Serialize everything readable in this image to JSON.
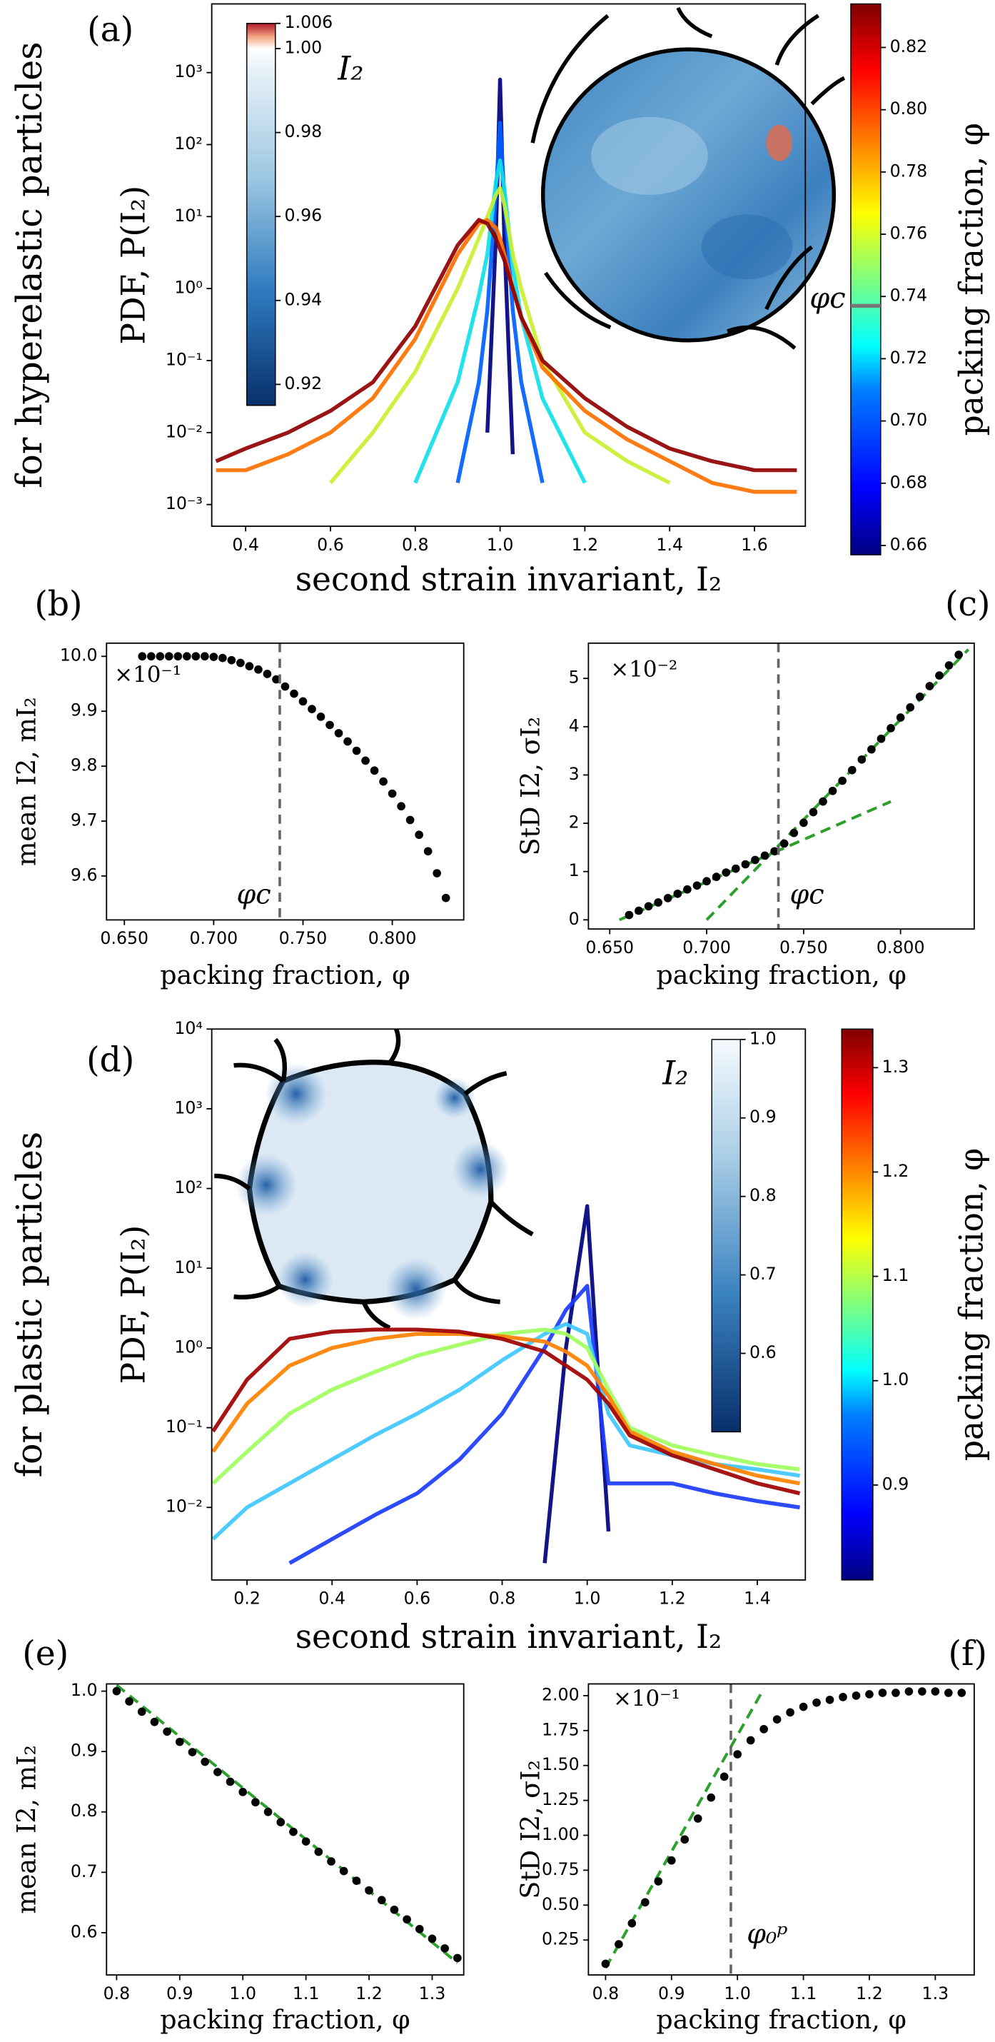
{
  "chart_data": [
    {
      "type": "line",
      "panel_label": "(a)",
      "row_label": "for hyperelastic particles",
      "y_label": "PDF, P(I₂)",
      "x_label": "second strain invariant, I₂",
      "yscale": "log",
      "xlim": [
        0.32,
        1.72
      ],
      "xticks": [
        0.4,
        0.6,
        0.8,
        {
          "value": 1,
          "label": "1.0"
        },
        1.2,
        1.4,
        1.6
      ],
      "ylim": [
        0.0005,
        9000
      ],
      "yticks": [
        {
          "value": 0.001,
          "label": "10⁻³"
        },
        {
          "value": 0.01,
          "label": "10⁻²"
        },
        {
          "value": 0.1,
          "label": "10⁻¹"
        },
        {
          "value": 1,
          "label": "10⁰"
        },
        {
          "value": 10,
          "label": "10¹"
        },
        {
          "value": 100,
          "label": "10²"
        },
        {
          "value": 1000,
          "label": "10³"
        }
      ],
      "x": [
        0.33,
        0.4,
        0.5,
        0.6,
        0.7,
        0.8,
        0.9,
        0.95,
        0.97,
        0.99,
        1.0,
        1.01,
        1.03,
        1.05,
        1.1,
        1.2,
        1.3,
        1.4,
        1.5,
        1.6,
        1.7
      ],
      "series": [
        {
          "color": "#00007f",
          "values": [
            null,
            null,
            null,
            null,
            null,
            null,
            null,
            null,
            0.01,
            5,
            800,
            5,
            0.005,
            null,
            null,
            null,
            null,
            null,
            null,
            null,
            null
          ]
        },
        {
          "color": "#0060ff",
          "values": [
            null,
            null,
            null,
            null,
            null,
            null,
            0.002,
            0.05,
            0.5,
            20,
            200,
            20,
            0.5,
            0.05,
            0.002,
            null,
            null,
            null,
            null,
            null,
            null
          ]
        },
        {
          "color": "#10e0e8",
          "values": [
            null,
            null,
            null,
            null,
            null,
            0.002,
            0.05,
            0.8,
            3,
            30,
            60,
            25,
            2,
            0.4,
            0.03,
            0.002,
            null,
            null,
            null,
            null,
            null
          ]
        },
        {
          "color": "#c8f030",
          "values": [
            null,
            null,
            null,
            0.002,
            0.01,
            0.07,
            1,
            5,
            10,
            20,
            25,
            15,
            3,
            1,
            0.1,
            0.01,
            0.004,
            0.002,
            null,
            null,
            null
          ]
        },
        {
          "color": "#ff7000",
          "values": [
            0.003,
            0.003,
            0.005,
            0.01,
            0.03,
            0.2,
            3,
            8,
            9,
            7,
            5,
            3,
            1,
            0.4,
            0.08,
            0.02,
            0.008,
            0.004,
            0.002,
            0.0015,
            0.0015
          ]
        },
        {
          "color": "#900000",
          "values": [
            0.004,
            0.006,
            0.01,
            0.02,
            0.05,
            0.3,
            4,
            9,
            8,
            5,
            3.5,
            2.5,
            1,
            0.4,
            0.1,
            0.03,
            0.012,
            0.006,
            0.004,
            0.003,
            0.003
          ]
        }
      ],
      "colorbar": {
        "label": "packing fraction, φ",
        "lim": [
          0.657,
          0.834
        ],
        "ticks": [
          0.66,
          0.68,
          {
            "value": 0.7,
            "label": "0.70"
          },
          0.72,
          0.74,
          0.76,
          0.78,
          {
            "value": 0.8,
            "label": "0.80"
          },
          0.82
        ],
        "marker": {
          "value": 0.737,
          "label": "φc"
        }
      },
      "inset_colorbar": {
        "label": "I₂",
        "lim": [
          0.915,
          1.006
        ],
        "ticks": [
          0.92,
          0.94,
          0.96,
          0.98,
          {
            "value": 1,
            "label": "1.00"
          },
          1.006
        ]
      }
    },
    {
      "type": "scatter",
      "panel_label": "(b)",
      "y_label": "mean I2, mI₂",
      "x_label": "packing fraction, φ",
      "multiplier": "×10⁻¹",
      "xlim": [
        0.64,
        0.84
      ],
      "xticks": [
        {
          "value": 0.65,
          "label": "0.650"
        },
        {
          "value": 0.7,
          "label": "0.700"
        },
        {
          "value": 0.75,
          "label": "0.750"
        },
        {
          "value": 0.8,
          "label": "0.800"
        }
      ],
      "ylim": [
        9.52,
        10.024
      ],
      "yticks": [
        9.6,
        9.7,
        9.8,
        9.9,
        {
          "value": 10,
          "label": "10.0"
        }
      ],
      "vline": {
        "value": 0.737,
        "label": "φc"
      },
      "color": "#000000",
      "x": [
        0.66,
        0.665,
        0.67,
        0.675,
        0.68,
        0.685,
        0.69,
        0.695,
        0.7,
        0.705,
        0.71,
        0.715,
        0.72,
        0.725,
        0.73,
        0.735,
        0.74,
        0.745,
        0.75,
        0.755,
        0.76,
        0.765,
        0.77,
        0.775,
        0.78,
        0.785,
        0.79,
        0.795,
        0.8,
        0.805,
        0.81,
        0.815,
        0.82,
        0.825,
        0.83
      ],
      "values": [
        10,
        10,
        10,
        10,
        10,
        10,
        10,
        10,
        9.999,
        9.997,
        9.993,
        9.988,
        9.982,
        9.976,
        9.968,
        9.958,
        9.945,
        9.932,
        9.918,
        9.904,
        9.89,
        9.875,
        9.86,
        9.845,
        9.828,
        9.81,
        9.792,
        9.772,
        9.75,
        9.727,
        9.702,
        9.675,
        9.645,
        9.605,
        9.56
      ]
    },
    {
      "type": "scatter",
      "panel_label": "(c)",
      "y_label": "StD I2, σI₂",
      "x_label": "packing fraction, φ",
      "multiplier": "×10⁻²",
      "xlim": [
        0.639,
        0.838
      ],
      "xticks": [
        {
          "value": 0.65,
          "label": "0.650"
        },
        {
          "value": 0.7,
          "label": "0.700"
        },
        {
          "value": 0.75,
          "label": "0.750"
        },
        {
          "value": 0.8,
          "label": "0.800"
        }
      ],
      "ylim": [
        -0.19,
        5.73
      ],
      "yticks": [
        0,
        1,
        2,
        3,
        4,
        5
      ],
      "vline": {
        "value": 0.737,
        "label": "φc"
      },
      "color": "#000000",
      "fits": [
        {
          "color": "#2ca02c",
          "x": [
            0.655,
            0.795
          ],
          "y": [
            0,
            2.45
          ]
        },
        {
          "color": "#2ca02c",
          "x": [
            0.7,
            0.835
          ],
          "y": [
            0,
            5.6
          ]
        }
      ],
      "x": [
        0.66,
        0.665,
        0.67,
        0.675,
        0.68,
        0.685,
        0.69,
        0.695,
        0.7,
        0.705,
        0.71,
        0.715,
        0.72,
        0.725,
        0.73,
        0.735,
        0.74,
        0.745,
        0.75,
        0.755,
        0.76,
        0.765,
        0.77,
        0.775,
        0.78,
        0.785,
        0.79,
        0.795,
        0.8,
        0.805,
        0.81,
        0.815,
        0.82,
        0.825,
        0.83
      ],
      "values": [
        0.1,
        0.19,
        0.28,
        0.36,
        0.45,
        0.54,
        0.63,
        0.71,
        0.8,
        0.89,
        0.98,
        1.06,
        1.15,
        1.24,
        1.33,
        1.42,
        1.58,
        1.8,
        2.01,
        2.23,
        2.45,
        2.67,
        2.88,
        3.1,
        3.32,
        3.53,
        3.75,
        3.97,
        4.19,
        4.4,
        4.62,
        4.84,
        5.06,
        5.27,
        5.49
      ]
    },
    {
      "type": "line",
      "panel_label": "(d)",
      "row_label": "for plastic particles",
      "y_label": "PDF, P(I₂)",
      "x_label": "second strain invariant, I₂",
      "yscale": "log",
      "xlim": [
        0.117,
        1.513
      ],
      "xticks": [
        0.2,
        0.4,
        0.6,
        0.8,
        {
          "value": 1,
          "label": "1.0"
        },
        1.2,
        1.4
      ],
      "ylim": [
        0.00123,
        10000
      ],
      "yticks": [
        {
          "value": 0.01,
          "label": "10⁻²"
        },
        {
          "value": 0.1,
          "label": "10⁻¹"
        },
        {
          "value": 1,
          "label": "10⁰"
        },
        {
          "value": 10,
          "label": "10¹"
        },
        {
          "value": 100,
          "label": "10²"
        },
        {
          "value": 1000,
          "label": "10³"
        },
        {
          "value": 10000,
          "label": "10⁴"
        }
      ],
      "x": [
        0.12,
        0.2,
        0.3,
        0.4,
        0.5,
        0.6,
        0.7,
        0.8,
        0.9,
        0.95,
        1.0,
        1.05,
        1.1,
        1.2,
        1.3,
        1.4,
        1.5
      ],
      "series": [
        {
          "color": "#00007f",
          "values": [
            null,
            null,
            null,
            null,
            null,
            null,
            null,
            null,
            0.002,
            1,
            60,
            0.005,
            null,
            null,
            null,
            null,
            null
          ]
        },
        {
          "color": "#1a3cff",
          "values": [
            null,
            null,
            0.002,
            0.004,
            0.008,
            0.015,
            0.04,
            0.15,
            1,
            3,
            6,
            0.02,
            0.02,
            0.02,
            0.015,
            0.012,
            0.01
          ]
        },
        {
          "color": "#40c8ff",
          "values": [
            0.004,
            0.01,
            0.02,
            0.04,
            0.08,
            0.15,
            0.3,
            0.7,
            1.5,
            2,
            1.5,
            0.15,
            0.06,
            0.045,
            0.035,
            0.03,
            0.025
          ]
        },
        {
          "color": "#a0ff60",
          "values": [
            0.02,
            0.05,
            0.15,
            0.3,
            0.5,
            0.8,
            1.1,
            1.5,
            1.7,
            1.5,
            1,
            0.3,
            0.1,
            0.06,
            0.045,
            0.035,
            0.03
          ]
        },
        {
          "color": "#ff8000",
          "values": [
            0.05,
            0.2,
            0.6,
            1,
            1.3,
            1.5,
            1.5,
            1.4,
            1.2,
            0.9,
            0.6,
            0.25,
            0.09,
            0.05,
            0.035,
            0.025,
            0.02
          ]
        },
        {
          "color": "#a00000",
          "values": [
            0.09,
            0.4,
            1.3,
            1.6,
            1.7,
            1.7,
            1.6,
            1.3,
            0.9,
            0.6,
            0.4,
            0.2,
            0.08,
            0.045,
            0.03,
            0.02,
            0.015
          ]
        }
      ],
      "colorbar": {
        "label": "packing fraction, φ",
        "lim": [
          0.809,
          1.337
        ],
        "ticks": [
          0.9,
          {
            "value": 1,
            "label": "1.0"
          },
          1.1,
          1.2,
          1.3
        ]
      },
      "inset_colorbar": {
        "label": "I₂",
        "lim": [
          0.5,
          1.0
        ],
        "ticks": [
          0.6,
          0.7,
          0.8,
          0.9,
          {
            "value": 1,
            "label": "1.0"
          }
        ]
      }
    },
    {
      "type": "scatter",
      "panel_label": "(e)",
      "y_label": "mean I2, mI₂",
      "x_label": "packing fraction, φ",
      "xlim": [
        0.784,
        1.35
      ],
      "xticks": [
        0.8,
        0.9,
        {
          "value": 1,
          "label": "1.0"
        },
        1.1,
        1.2,
        1.3
      ],
      "ylim": [
        0.53,
        1.012
      ],
      "yticks": [
        0.6,
        0.7,
        0.8,
        0.9,
        {
          "value": 1,
          "label": "1.0"
        }
      ],
      "color": "#000000",
      "fits": [
        {
          "color": "#2ca02c",
          "x": [
            0.8,
            1.34
          ],
          "y": [
            1.01,
            0.55
          ]
        }
      ],
      "x": [
        0.8,
        0.82,
        0.84,
        0.86,
        0.88,
        0.9,
        0.92,
        0.94,
        0.96,
        0.98,
        1.0,
        1.02,
        1.04,
        1.06,
        1.08,
        1.1,
        1.12,
        1.14,
        1.16,
        1.18,
        1.2,
        1.22,
        1.24,
        1.26,
        1.28,
        1.3,
        1.32,
        1.34
      ],
      "values": [
        1.0,
        0.983,
        0.966,
        0.949,
        0.933,
        0.916,
        0.899,
        0.883,
        0.866,
        0.85,
        0.833,
        0.816,
        0.8,
        0.783,
        0.767,
        0.751,
        0.734,
        0.718,
        0.702,
        0.686,
        0.67,
        0.654,
        0.638,
        0.622,
        0.606,
        0.59,
        0.574,
        0.558
      ]
    },
    {
      "type": "scatter",
      "panel_label": "(f)",
      "y_label": "StD I2, σI₂",
      "x_label": "packing fraction, φ",
      "multiplier": "×10⁻¹",
      "xlim": [
        0.774,
        1.359
      ],
      "xticks": [
        0.8,
        0.9,
        {
          "value": 1,
          "label": "1.0"
        },
        1.1,
        1.2,
        1.3
      ],
      "ylim": [
        0,
        2.084
      ],
      "yticks": [
        0.25,
        {
          "value": 0.5,
          "label": "0.50"
        },
        0.75,
        {
          "value": 1,
          "label": "1.00"
        },
        1.25,
        {
          "value": 1.5,
          "label": "1.50"
        },
        1.75,
        {
          "value": 2,
          "label": "2.00"
        }
      ],
      "vline": {
        "value": 0.99,
        "label": "φ₀ᵖ"
      },
      "color": "#000000",
      "fits": [
        {
          "color": "#2ca02c",
          "x": [
            0.8,
            1.04
          ],
          "y": [
            0.05,
            2.05
          ]
        }
      ],
      "x": [
        0.8,
        0.82,
        0.84,
        0.86,
        0.88,
        0.9,
        0.92,
        0.94,
        0.96,
        0.98,
        1.0,
        1.02,
        1.04,
        1.06,
        1.08,
        1.1,
        1.12,
        1.14,
        1.16,
        1.18,
        1.2,
        1.22,
        1.24,
        1.26,
        1.28,
        1.3,
        1.32,
        1.34
      ],
      "values": [
        0.08,
        0.22,
        0.37,
        0.52,
        0.67,
        0.82,
        0.97,
        1.12,
        1.27,
        1.42,
        1.58,
        1.68,
        1.76,
        1.83,
        1.88,
        1.92,
        1.95,
        1.97,
        1.99,
        2.0,
        2.01,
        2.02,
        2.02,
        2.03,
        2.03,
        2.03,
        2.02,
        2.02
      ]
    }
  ]
}
